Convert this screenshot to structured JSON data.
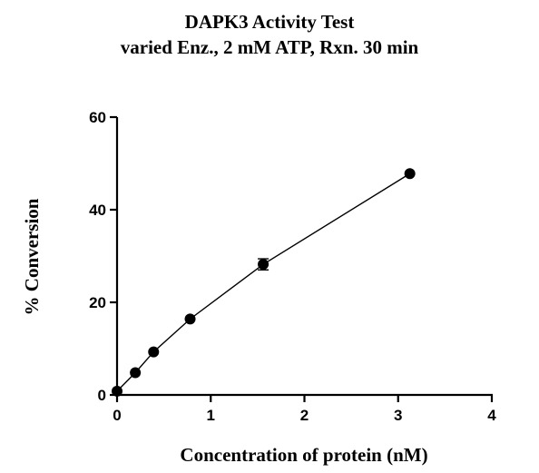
{
  "chart_data": {
    "type": "scatter",
    "title": "DAPK3 Activity Test",
    "subtitle": "varied Enz., 2 mM ATP, Rxn. 30 min",
    "xlabel": "Concentration of protein (nM)",
    "ylabel": "% Conversion",
    "xlim": [
      0,
      4
    ],
    "ylim": [
      0,
      60
    ],
    "xticks": [
      0,
      1,
      2,
      3,
      4
    ],
    "yticks": [
      0,
      20,
      40,
      60
    ],
    "grid": false,
    "series": [
      {
        "x": [
          0,
          0.195,
          0.39,
          0.78,
          1.56,
          3.125
        ],
        "y": [
          0.8,
          4.8,
          9.3,
          16.4,
          28.2,
          47.8
        ],
        "error": [
          0,
          0,
          0,
          0,
          1.2,
          0
        ],
        "color": "#000000",
        "line": true,
        "marker": "circle"
      }
    ]
  }
}
